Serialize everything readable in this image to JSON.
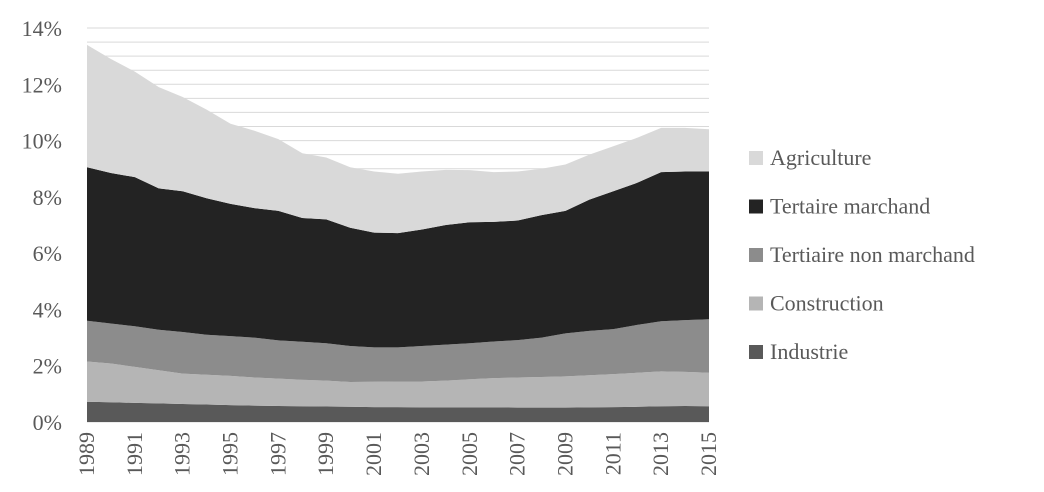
{
  "chart_data": {
    "type": "area",
    "stacked": true,
    "x": [
      1989,
      1990,
      1991,
      1992,
      1993,
      1994,
      1995,
      1996,
      1997,
      1998,
      1999,
      2000,
      2001,
      2002,
      2003,
      2004,
      2005,
      2006,
      2007,
      2008,
      2009,
      2010,
      2011,
      2012,
      2013,
      2014,
      2015
    ],
    "x_tick_labels": [
      "1989",
      "1991",
      "1993",
      "1995",
      "1997",
      "1999",
      "2001",
      "2003",
      "2005",
      "2007",
      "2009",
      "2011",
      "2013",
      "2015"
    ],
    "y_tick_labels": [
      "0%",
      "2%",
      "4%",
      "6%",
      "8%",
      "10%",
      "12%",
      "14%"
    ],
    "ylim": [
      0,
      14
    ],
    "y_unit": "%",
    "grid": true,
    "legend_position": "right",
    "title": "",
    "xlabel": "",
    "ylabel": "",
    "series": [
      {
        "name": "Industrie",
        "color": "#595959",
        "values": [
          0.72,
          0.7,
          0.68,
          0.66,
          0.64,
          0.62,
          0.6,
          0.58,
          0.57,
          0.56,
          0.55,
          0.54,
          0.53,
          0.53,
          0.52,
          0.52,
          0.52,
          0.52,
          0.51,
          0.51,
          0.51,
          0.52,
          0.53,
          0.54,
          0.56,
          0.57,
          0.56
        ]
      },
      {
        "name": "Construction",
        "color": "#b5b5b5",
        "values": [
          1.43,
          1.38,
          1.28,
          1.18,
          1.08,
          1.06,
          1.04,
          1.0,
          0.97,
          0.94,
          0.92,
          0.88,
          0.9,
          0.91,
          0.92,
          0.95,
          1.0,
          1.04,
          1.07,
          1.09,
          1.11,
          1.14,
          1.17,
          1.21,
          1.24,
          1.21,
          1.19
        ]
      },
      {
        "name": "Tertiaire non marchand",
        "color": "#8c8c8c",
        "values": [
          1.45,
          1.42,
          1.44,
          1.44,
          1.48,
          1.42,
          1.41,
          1.42,
          1.36,
          1.35,
          1.33,
          1.28,
          1.22,
          1.21,
          1.26,
          1.28,
          1.28,
          1.3,
          1.33,
          1.4,
          1.53,
          1.58,
          1.6,
          1.7,
          1.78,
          1.84,
          1.9
        ]
      },
      {
        "name": "Tertaire marchand",
        "color": "#232323",
        "values": [
          5.45,
          5.35,
          5.3,
          5.02,
          5.0,
          4.85,
          4.7,
          4.6,
          4.6,
          4.4,
          4.4,
          4.2,
          4.08,
          4.06,
          4.14,
          4.25,
          4.3,
          4.25,
          4.25,
          4.35,
          4.35,
          4.66,
          4.9,
          5.05,
          5.3,
          5.28,
          5.25
        ]
      },
      {
        "name": "Agriculture",
        "color": "#d9d9d9",
        "values": [
          4.35,
          4.05,
          3.75,
          3.6,
          3.35,
          3.15,
          2.85,
          2.75,
          2.55,
          2.3,
          2.2,
          2.15,
          2.17,
          2.11,
          2.06,
          1.96,
          1.85,
          1.77,
          1.74,
          1.65,
          1.65,
          1.6,
          1.6,
          1.6,
          1.57,
          1.55,
          1.5
        ]
      }
    ]
  }
}
